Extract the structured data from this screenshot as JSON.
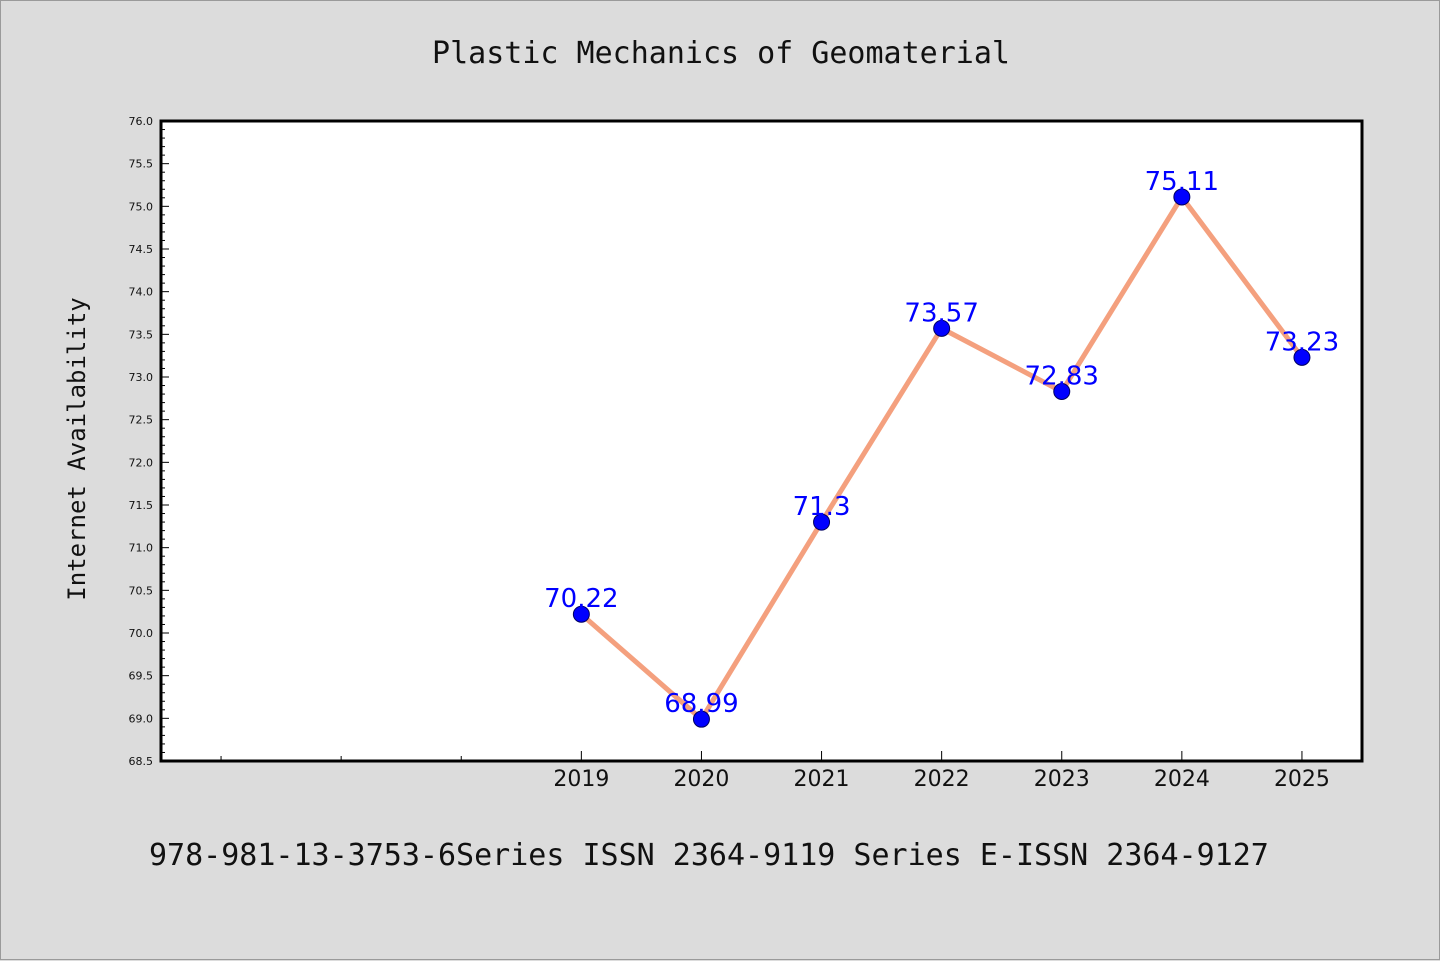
{
  "colors": {
    "background": "#dcdcdc",
    "plot_background": "#ffffff",
    "line": "#f4a07e",
    "marker": "#0000ff",
    "label": "#0000ff"
  },
  "footer": "978-981-13-3753-6Series ISSN 2364-9119 Series E-ISSN 2364-9127",
  "chart_data": {
    "type": "line",
    "title": "Plastic Mechanics of Geomaterial",
    "xlabel": "",
    "ylabel": "Internet Availability",
    "categories": [
      "2019",
      "2020",
      "2021",
      "2022",
      "2023",
      "2024",
      "2025"
    ],
    "series": [
      {
        "values": [
          70.22,
          68.99,
          71.3,
          73.57,
          72.83,
          75.11,
          73.23
        ],
        "labels": [
          "70.22",
          "68.99",
          "71.3",
          "73.57",
          "72.83",
          "75.11",
          "73.23"
        ]
      }
    ],
    "x_slots": 10,
    "first_category_slot": 3,
    "ylim": [
      68.5,
      76.0
    ],
    "yticks": [
      "68.5",
      "69.0",
      "69.5",
      "70.0",
      "70.5",
      "71.0",
      "71.5",
      "72.0",
      "72.5",
      "73.0",
      "73.5",
      "74.0",
      "74.5",
      "75.0",
      "75.5",
      "76.0"
    ],
    "grid": false,
    "legend": "none",
    "marker": "circle"
  }
}
